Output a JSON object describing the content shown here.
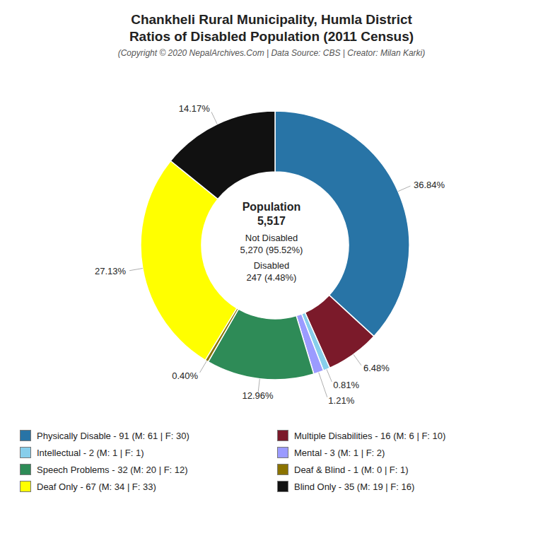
{
  "chart_data": {
    "type": "pie",
    "title": [
      "Chankheli Rural Municipality, Humla District",
      "Ratios of Disabled Population (2011 Census)"
    ],
    "subtitle": "(Copyright © 2020 NepalArchives.Com | Data Source: CBS | Creator: Milan Karki)",
    "categories": [
      "Physically Disable - 91 (M: 61 | F: 30)",
      "Multiple Disabilities - 16 (M: 6 | F: 10)",
      "Intellectual - 2 (M: 1 | F: 1)",
      "Mental - 3 (M: 1 | F: 2)",
      "Speech Problems - 32 (M: 20 | F: 12)",
      "Deaf & Blind - 1 (M: 0 | F: 1)",
      "Deaf Only - 67 (M: 34 | F: 33)",
      "Blind Only - 35 (M: 19 | F: 16)"
    ],
    "values": [
      36.84,
      6.48,
      0.81,
      1.21,
      12.96,
      0.4,
      27.13,
      14.17
    ],
    "value_labels": [
      "36.84%",
      "6.48%",
      "0.81%",
      "1.21%",
      "12.96%",
      "0.40%",
      "27.13%",
      "14.17%"
    ],
    "colors": [
      "#2874a6",
      "#7b1a2a",
      "#87ceeb",
      "#9b9bff",
      "#2e8b57",
      "#8b7300",
      "#ffff00",
      "#111111"
    ],
    "data_labels": true,
    "legend": "bottom",
    "annotations": [
      "Population",
      "5,517",
      "Not Disabled",
      "5,270 (95.52%)",
      "Disabled",
      "247 (4.48%)"
    ]
  }
}
